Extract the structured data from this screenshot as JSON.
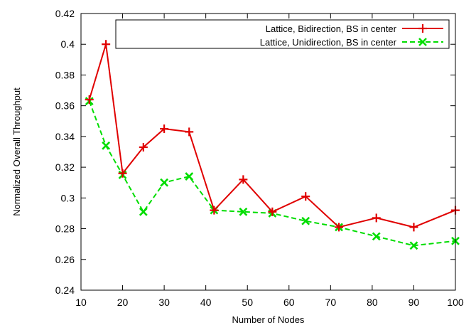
{
  "chart_data": {
    "type": "line",
    "title": "",
    "xlabel": "Number of Nodes",
    "ylabel": "Normalized Overall Throughput",
    "xlim": [
      10,
      100
    ],
    "ylim": [
      0.24,
      0.42
    ],
    "xticks": [
      10,
      20,
      30,
      40,
      50,
      60,
      70,
      80,
      90,
      100
    ],
    "yticks": [
      0.24,
      0.26,
      0.28,
      0.3,
      0.32,
      0.34,
      0.36,
      0.38,
      0.4,
      0.42
    ],
    "xtick_labels": [
      "10",
      "20",
      "30",
      "40",
      "50",
      "60",
      "70",
      "80",
      "90",
      "100"
    ],
    "ytick_labels": [
      "0.24",
      "0.26",
      "0.28",
      "0.3",
      "0.32",
      "0.34",
      "0.36",
      "0.38",
      "0.4",
      "0.42"
    ],
    "grid": false,
    "legend_position": "top-right",
    "series": [
      {
        "name": "Lattice, Bidirection, BS in center",
        "color": "#e00000",
        "marker": "plus",
        "line_style": "solid",
        "x": [
          12,
          16,
          20,
          25,
          30,
          36,
          42,
          49,
          56,
          64,
          72,
          81,
          90,
          100
        ],
        "y": [
          0.364,
          0.4,
          0.316,
          0.333,
          0.345,
          0.343,
          0.292,
          0.312,
          0.291,
          0.301,
          0.281,
          0.287,
          0.281,
          0.292
        ]
      },
      {
        "name": "Lattice, Unidirection, BS in center",
        "color": "#00dd00",
        "marker": "x",
        "line_style": "dashed",
        "x": [
          12,
          16,
          20,
          25,
          30,
          36,
          42,
          49,
          56,
          64,
          72,
          81,
          90,
          100
        ],
        "y": [
          0.363,
          0.334,
          0.315,
          0.291,
          0.31,
          0.314,
          0.292,
          0.291,
          0.29,
          0.285,
          0.281,
          0.275,
          0.269,
          0.272
        ]
      }
    ]
  }
}
